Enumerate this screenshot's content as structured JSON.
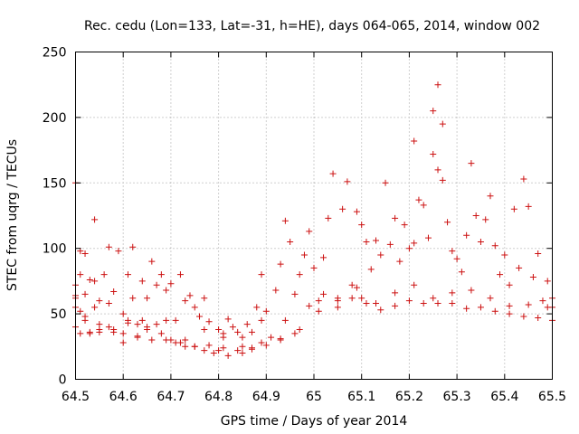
{
  "chart_data": {
    "type": "scatter",
    "title": "Rec. cedu (Lon=133, Lat=-31, h=HE), days 064-065, 2014, window 002",
    "xlabel": "GPS time / Days of year 2014",
    "ylabel": "STEC from uqrg / TECUs",
    "xlim": [
      64.5,
      65.5
    ],
    "ylim": [
      0,
      250
    ],
    "grid": true,
    "marker": "+",
    "color": "#cc1111",
    "xticks": [
      64.5,
      64.6,
      64.7,
      64.8,
      64.9,
      65.0,
      65.1,
      65.2,
      65.3,
      65.4,
      65.5
    ],
    "xtick_labels": [
      "64.5",
      "64.6",
      "64.7",
      "64.8",
      "64.9",
      "65",
      "65.1",
      "65.2",
      "65.3",
      "65.4",
      "65.5"
    ],
    "yticks": [
      0,
      50,
      100,
      150,
      200,
      250
    ],
    "ytick_labels": [
      "0",
      "50",
      "100",
      "150",
      "200",
      "250"
    ],
    "series": [
      {
        "name": "STEC",
        "x": [
          64.5,
          64.5,
          64.5,
          64.5,
          64.5,
          64.51,
          64.51,
          64.51,
          64.51,
          64.52,
          64.52,
          64.52,
          64.53,
          64.53,
          64.54,
          64.54,
          64.54,
          64.55,
          64.55,
          64.55,
          64.56,
          64.57,
          64.57,
          64.58,
          64.58,
          64.59,
          64.6,
          64.6,
          64.61,
          64.61,
          64.62,
          64.62,
          64.63,
          64.63,
          64.64,
          64.64,
          64.65,
          64.65,
          64.66,
          64.67,
          64.67,
          64.68,
          64.68,
          64.69,
          64.7,
          64.7,
          64.71,
          64.71,
          64.72,
          64.73,
          64.73,
          64.74,
          64.75,
          64.75,
          64.76,
          64.77,
          64.77,
          64.78,
          64.79,
          64.8,
          64.8,
          64.81,
          64.82,
          64.82,
          64.83,
          64.84,
          64.85,
          64.85,
          64.86,
          64.87,
          64.87,
          64.88,
          64.89,
          64.89,
          64.9,
          64.91,
          64.92,
          64.93,
          64.94,
          64.94,
          64.95,
          64.96,
          64.97,
          64.98,
          64.99,
          65.0,
          65.01,
          65.02,
          65.03,
          65.04,
          65.05,
          65.06,
          65.07,
          65.08,
          65.09,
          65.1,
          65.1,
          65.11,
          65.12,
          65.13,
          65.14,
          65.15,
          65.16,
          65.17,
          65.18,
          65.19,
          65.2,
          65.21,
          65.21,
          65.22,
          65.23,
          65.24,
          65.25,
          65.25,
          65.26,
          65.26,
          65.27,
          65.27,
          65.28,
          65.29,
          65.3,
          65.31,
          65.32,
          65.33,
          65.34,
          65.35,
          65.36,
          65.37,
          65.38,
          65.39,
          65.4,
          65.41,
          65.42,
          65.43,
          65.44,
          65.45,
          65.46,
          65.47,
          65.48,
          65.49,
          65.5,
          65.5,
          64.5,
          64.52,
          64.55,
          64.58,
          64.6,
          64.63,
          64.66,
          64.69,
          64.72,
          64.75,
          64.78,
          64.81,
          64.84,
          64.87,
          64.9,
          64.93,
          64.96,
          64.99,
          65.02,
          65.05,
          65.08,
          65.11,
          65.14,
          65.17,
          65.2,
          65.23,
          65.26,
          65.29,
          65.32,
          65.35,
          65.38,
          65.41,
          65.44,
          65.47,
          65.5,
          64.53,
          64.57,
          64.61,
          64.65,
          64.69,
          64.73,
          64.77,
          64.81,
          64.85,
          64.89,
          64.93,
          64.97,
          65.01,
          65.05,
          65.09,
          65.13,
          65.17,
          65.21,
          65.25,
          65.29,
          65.33,
          65.37,
          65.41,
          65.45,
          65.49
        ],
        "y": [
          150,
          72,
          62,
          55,
          40,
          98,
          80,
          52,
          35,
          96,
          65,
          48,
          76,
          35,
          122,
          75,
          55,
          60,
          42,
          36,
          80,
          101,
          40,
          67,
          38,
          98,
          50,
          35,
          80,
          43,
          101,
          62,
          42,
          32,
          75,
          45,
          62,
          38,
          90,
          72,
          42,
          80,
          35,
          68,
          73,
          30,
          45,
          28,
          80,
          60,
          25,
          64,
          55,
          25,
          48,
          62,
          22,
          44,
          20,
          38,
          22,
          35,
          46,
          18,
          40,
          36,
          32,
          20,
          42,
          24,
          36,
          55,
          80,
          28,
          52,
          32,
          68,
          88,
          121,
          45,
          105,
          65,
          80,
          95,
          113,
          85,
          60,
          93,
          123,
          157,
          55,
          130,
          151,
          72,
          128,
          118,
          62,
          105,
          84,
          106,
          95,
          150,
          103,
          123,
          90,
          118,
          100,
          182,
          104,
          137,
          133,
          108,
          205,
          172,
          225,
          160,
          152,
          195,
          120,
          98,
          92,
          82,
          110,
          165,
          125,
          105,
          122,
          140,
          102,
          80,
          95,
          72,
          130,
          85,
          153,
          132,
          78,
          96,
          60,
          75,
          62,
          55,
          64,
          45,
          38,
          36,
          28,
          33,
          30,
          30,
          28,
          25,
          26,
          24,
          22,
          23,
          26,
          31,
          35,
          56,
          65,
          60,
          62,
          58,
          53,
          56,
          60,
          58,
          58,
          58,
          54,
          55,
          52,
          50,
          48,
          47,
          45,
          36,
          58,
          45,
          40,
          45,
          30,
          38,
          32,
          25,
          45,
          30,
          38,
          52,
          62,
          70,
          58,
          66,
          72,
          62,
          66,
          68,
          62,
          56,
          57,
          55
        ]
      }
    ]
  }
}
